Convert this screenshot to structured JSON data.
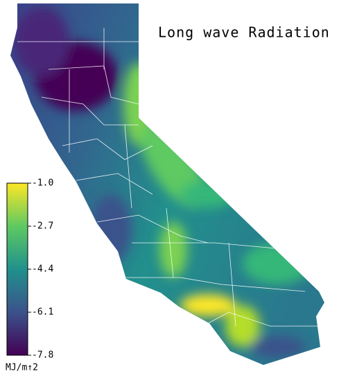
{
  "title": "Long wave Radiation",
  "colorbar": {
    "lim": [
      -7.8,
      -1.0
    ],
    "ticks": [
      {
        "value": -1.0,
        "label": "-1.0"
      },
      -2.7,
      -4.4,
      -6.1,
      -7.8
    ],
    "label": "MJ/m↑2"
  }
}
